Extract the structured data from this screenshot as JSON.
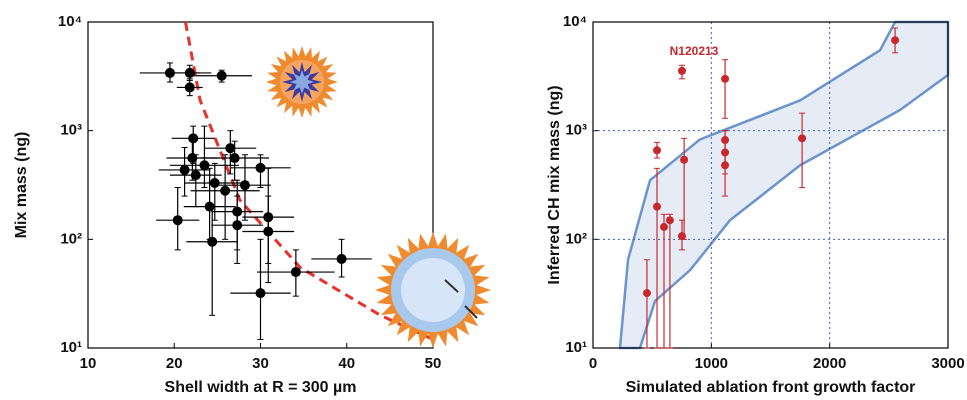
{
  "chart_data": [
    {
      "type": "scatter",
      "ylog": true,
      "color": "#000000",
      "xlabel": "Shell width at R = 300 µm",
      "ylabel": "Mix mass (ng)",
      "xlim": [
        10,
        50
      ],
      "xticks": [
        10,
        20,
        30,
        40,
        50
      ],
      "ylim": [
        10,
        10000
      ],
      "yticks": [
        {
          "value": 10,
          "label": "10¹"
        },
        {
          "value": 100,
          "label": "10²"
        },
        {
          "value": 1000,
          "label": "10³"
        },
        {
          "value": 10000,
          "label": "10⁴"
        }
      ],
      "x": [
        19.5,
        21.8,
        21.8,
        25.5,
        22.2,
        22.1,
        21.2,
        23.5,
        22.5,
        26.5,
        27.0,
        30.0,
        24.7,
        25.9,
        28.2,
        24.1,
        27.3,
        27.3,
        30.9,
        30.9,
        20.4,
        24.4,
        34.1,
        39.4,
        30.0
      ],
      "values": [
        3400,
        3400,
        2500,
        3200,
        850,
        560,
        435,
        480,
        390,
        690,
        560,
        455,
        330,
        280,
        315,
        200,
        180,
        135,
        160,
        118,
        150,
        95,
        50,
        66,
        32
      ],
      "xerr": [
        3.5,
        2.5,
        1.5,
        3.5,
        2.5,
        3,
        3,
        4,
        3,
        3,
        4,
        3.5,
        3.5,
        4,
        3,
        3,
        3,
        3,
        3,
        3,
        2.5,
        3,
        4.5,
        3.5,
        3.5
      ],
      "y_low": [
        2800,
        2900,
        2100,
        2800,
        500,
        350,
        250,
        300,
        200,
        400,
        350,
        300,
        150,
        100,
        150,
        100,
        80,
        60,
        60,
        40,
        80,
        20,
        30,
        45,
        12
      ],
      "y_high": [
        4200,
        4000,
        3000,
        3600,
        1100,
        800,
        700,
        1100,
        600,
        1000,
        800,
        600,
        500,
        600,
        600,
        450,
        350,
        250,
        450,
        250,
        300,
        200,
        80,
        100,
        100
      ],
      "curve": {
        "color": "#e8312a",
        "x": [
          21.3,
          23,
          27.6,
          34.6,
          43.9,
          50
        ],
        "values": [
          10000,
          1900,
          230,
          55,
          20,
          12
        ]
      }
    },
    {
      "type": "scatter",
      "ylog": true,
      "color": "#c8282d",
      "grid": true,
      "grid_color": "#3a5ec9",
      "xlabel": "Simulated ablation front growth factor",
      "ylabel": "Inferred CH mix mass (ng)",
      "xlim": [
        0,
        3000
      ],
      "xticks": [
        0,
        1000,
        2000,
        3000
      ],
      "ylim": [
        10,
        10000
      ],
      "yticks": [
        {
          "value": 10,
          "label": "10¹"
        },
        {
          "value": 100,
          "label": "10²"
        },
        {
          "value": 1000,
          "label": "10³"
        },
        {
          "value": 10000,
          "label": "10⁴"
        }
      ],
      "x": [
        456,
        541,
        541,
        600,
        650,
        752,
        770,
        752,
        1116,
        1116,
        1116,
        1116,
        1767,
        2553
      ],
      "values": [
        32,
        660,
        200,
        130,
        150,
        3550,
        540,
        107,
        3000,
        820,
        630,
        480,
        850,
        6800
      ],
      "y_low": [
        10,
        560,
        10,
        10,
        10,
        3000,
        100,
        80,
        1300,
        500,
        400,
        250,
        300,
        5200
      ],
      "y_high": [
        65,
        780,
        450,
        170,
        170,
        4000,
        850,
        150,
        4500,
        1000,
        800,
        1000,
        1450,
        8800
      ],
      "annotation": {
        "text": "N120213",
        "x": 752,
        "y": 3550
      },
      "band": {
        "fill": "#e6ecf5",
        "stroke": "#6b93cc",
        "x": [
          228,
          296,
          482,
          904,
          1750,
          2426,
          2553,
          2975,
          3000,
          3000,
          2595,
          1750,
          1158,
          820,
          524,
          397
        ],
        "values": [
          10,
          65,
          350,
          830,
          1900,
          5500,
          10000,
          10000,
          10000,
          3250,
          1550,
          480,
          150,
          52,
          27,
          10
        ]
      }
    }
  ]
}
